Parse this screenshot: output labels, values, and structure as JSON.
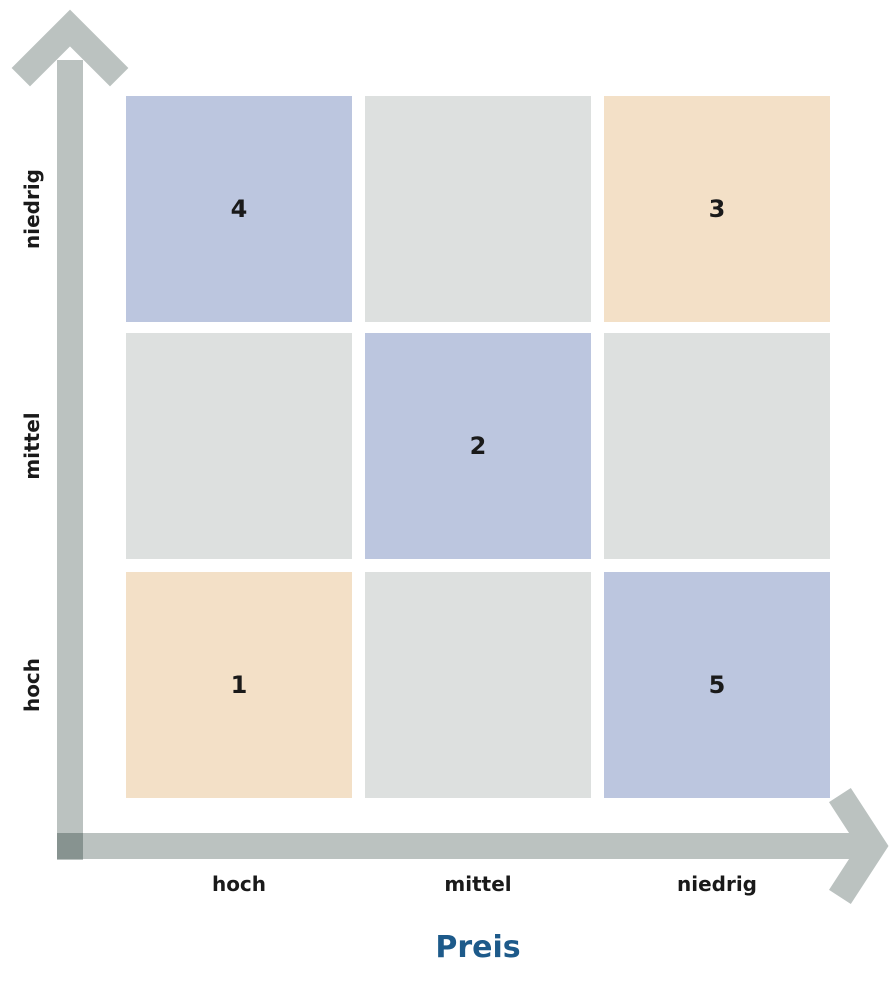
{
  "diagram": {
    "x_axis": {
      "title": "Preis",
      "ticks": [
        "hoch",
        "mittel",
        "niedrig"
      ]
    },
    "y_axis": {
      "ticks_bottom_to_top": [
        "hoch",
        "mittel",
        "niedrig"
      ]
    },
    "cells": [
      {
        "row": 0,
        "col": 0,
        "label": "4",
        "color": "#bcc6df"
      },
      {
        "row": 0,
        "col": 1,
        "label": "",
        "color": "#dde0df"
      },
      {
        "row": 0,
        "col": 2,
        "label": "3",
        "color": "#f3e0c7"
      },
      {
        "row": 1,
        "col": 0,
        "label": "",
        "color": "#dde0df"
      },
      {
        "row": 1,
        "col": 1,
        "label": "2",
        "color": "#bcc6df"
      },
      {
        "row": 1,
        "col": 2,
        "label": "",
        "color": "#dde0df"
      },
      {
        "row": 2,
        "col": 0,
        "label": "1",
        "color": "#f3e0c7"
      },
      {
        "row": 2,
        "col": 1,
        "label": "",
        "color": "#dde0df"
      },
      {
        "row": 2,
        "col": 2,
        "label": "5",
        "color": "#bcc6df"
      }
    ],
    "colors": {
      "axis": "#bbc2c0",
      "axis_corner": "#879390",
      "title": "#1d5a8a"
    }
  }
}
